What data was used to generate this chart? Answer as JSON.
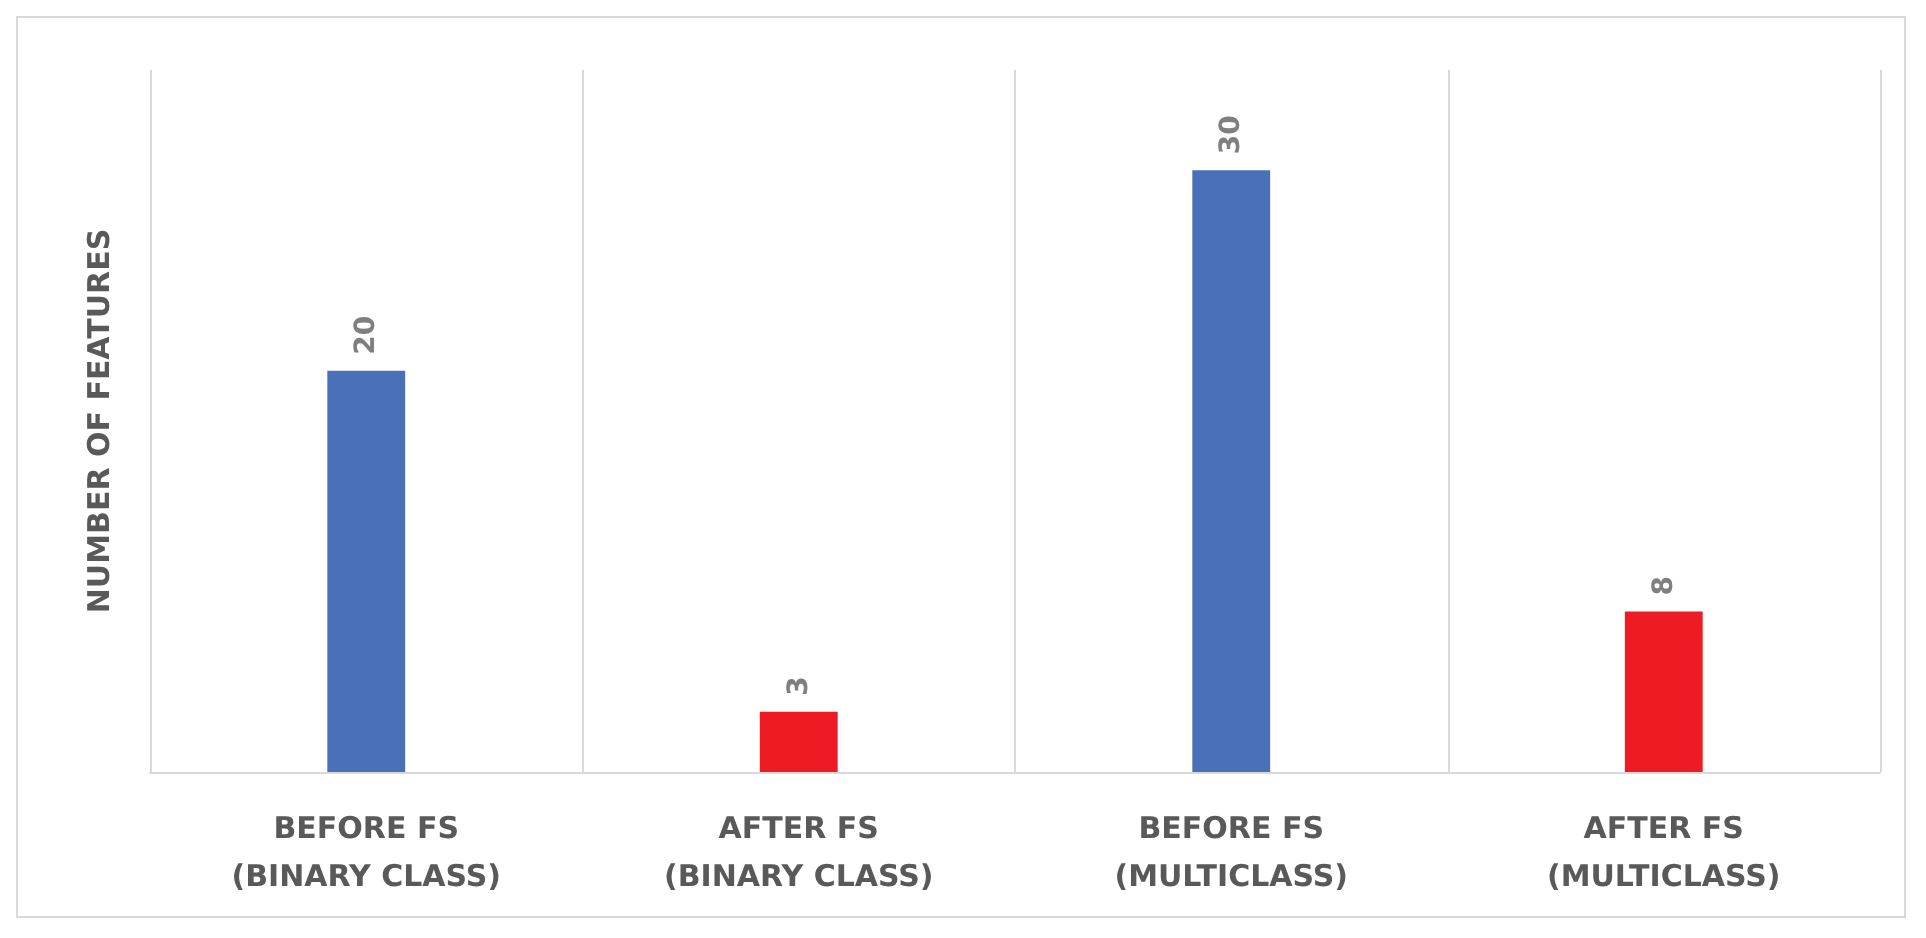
{
  "chart_data": {
    "type": "bar",
    "ylabel": "NUMBER OF FEATURES",
    "categories": [
      "BEFORE FS (BINARY CLASS)",
      "AFTER FS (BINARY CLASS)",
      "BEFORE FS (MULTICLASS)",
      "AFTER FS (MULTICLASS)"
    ],
    "values": [
      20,
      3,
      30,
      8
    ],
    "colors": [
      "#4a70b8",
      "#ed1c24",
      "#4a70b8",
      "#ed1c24"
    ],
    "ylim": [
      0,
      35
    ],
    "grid": "x",
    "data_labels": true
  }
}
